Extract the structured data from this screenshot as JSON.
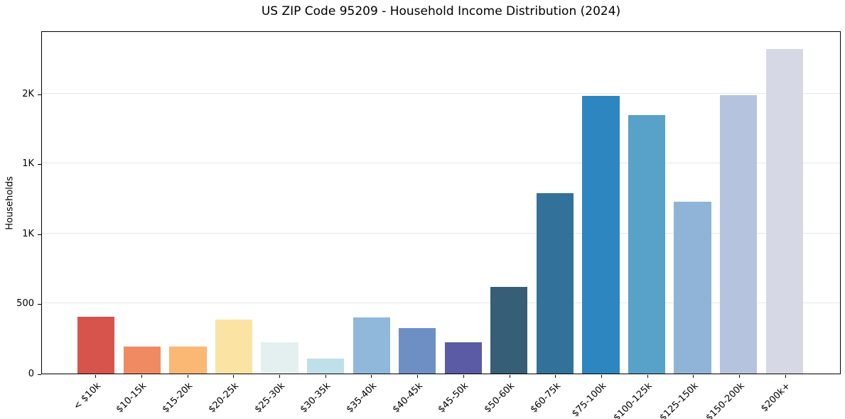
{
  "chart_data": {
    "type": "bar",
    "title": "US ZIP Code 95209 - Household Income Distribution (2024)",
    "xlabel": "",
    "ylabel": "Households",
    "categories": [
      "< $10k",
      "$10-15k",
      "$15-20k",
      "$20-25k",
      "$25-30k",
      "$30-35k",
      "$35-40k",
      "$40-45k",
      "$45-50k",
      "$50-60k",
      "$60-75k",
      "$75-100k",
      "$100-125k",
      "$125-150k",
      "$150-200k",
      "$200k+"
    ],
    "values": [
      405,
      192,
      192,
      388,
      222,
      106,
      403,
      323,
      222,
      617,
      1289,
      1985,
      1849,
      1228,
      1991,
      2318
    ],
    "bar_colors": [
      "#d6544c",
      "#ef8a63",
      "#fab874",
      "#fbe3a3",
      "#e4f0ef",
      "#bfdfeb",
      "#8fb8da",
      "#6d8fc4",
      "#5a5aa5",
      "#365e76",
      "#32729a",
      "#2e86c1",
      "#58a2ca",
      "#90b4d7",
      "#b6c3de",
      "#d6d8e6"
    ],
    "ylim": [
      0,
      2440
    ],
    "yticks": [
      {
        "value": 0,
        "label": "0"
      },
      {
        "value": 500,
        "label": "500"
      },
      {
        "value": 1000,
        "label": "1K"
      },
      {
        "value": 1500,
        "label": "1K"
      },
      {
        "value": 2000,
        "label": "2K"
      }
    ],
    "grid": "horizontal gridlines at y ticks",
    "gridline_color": "#e8e8e8",
    "spine_color": "#000000",
    "background_color": "#ffffff",
    "legend": "none",
    "bar_orientation": "vertical",
    "x_tick_label_rotation": 45
  }
}
